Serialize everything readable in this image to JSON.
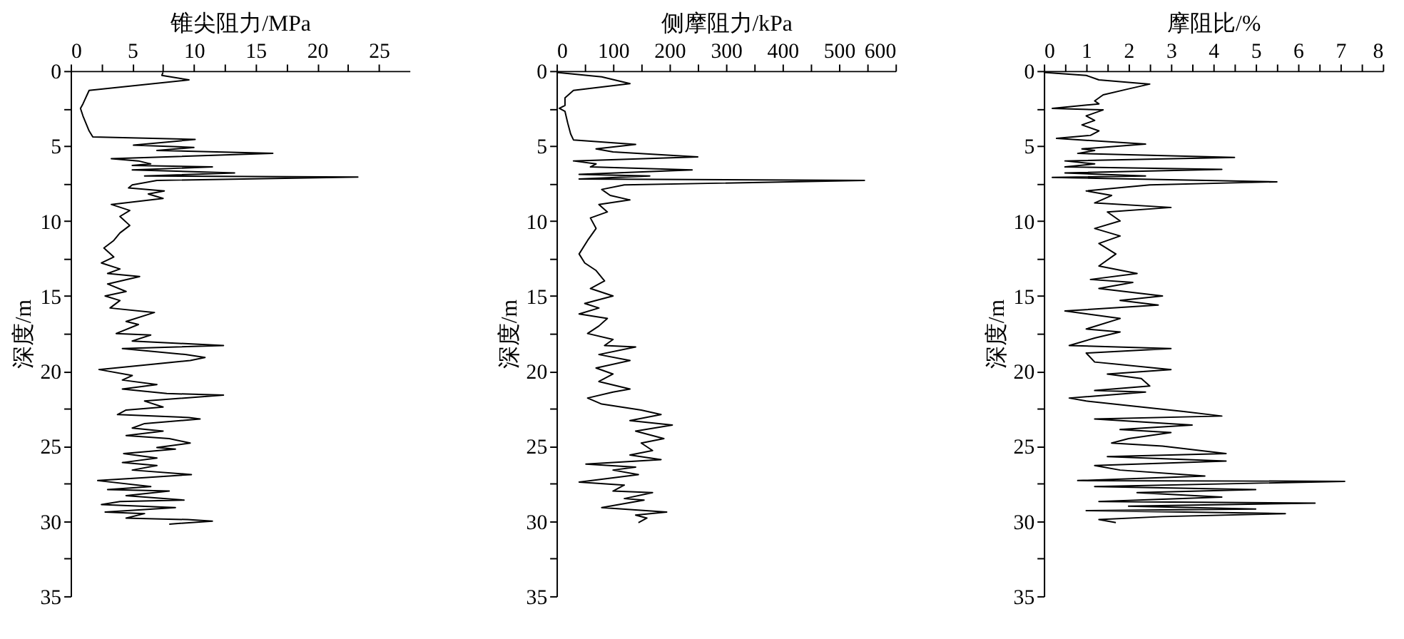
{
  "chart_data": [
    {
      "type": "line",
      "xlabel": "锥尖阻力/MPa",
      "ylabel": "深度/m",
      "xlim": [
        0,
        27.5
      ],
      "xticks": [
        0,
        {
          "value": 2.5,
          "label": null
        },
        5,
        {
          "value": 7.5,
          "label": null
        },
        10,
        {
          "value": 12.5,
          "label": null
        },
        15,
        {
          "value": 17.5,
          "label": null
        },
        20,
        {
          "value": 22.5,
          "label": null
        },
        25
      ],
      "ylim": [
        35,
        0
      ],
      "yticks": [
        0,
        {
          "value": 2.5,
          "label": null
        },
        5,
        {
          "value": 7.5,
          "label": null
        },
        10,
        {
          "value": 12.5,
          "label": null
        },
        15,
        {
          "value": 17.5,
          "label": null
        },
        20,
        {
          "value": 22.5,
          "label": null
        },
        25,
        {
          "value": 27.5,
          "label": null
        },
        30,
        {
          "value": 32.5,
          "label": null
        },
        35
      ],
      "series": [
        {
          "color": "#000000",
          "x": [
            7.5,
            7.4,
            9.6,
            1.5,
            1.0,
            0.8,
            1.0,
            1.5,
            1.8,
            10.1,
            5.1,
            10,
            7,
            16.4,
            3.3,
            5.5,
            6.5,
            5,
            11.5,
            5,
            13.3,
            6,
            23.3,
            7,
            5,
            4.7,
            7.6,
            6.3,
            7.5,
            3.3,
            4.8,
            4,
            4.8,
            4,
            3.5,
            2.7,
            3.5,
            2.5,
            4,
            3,
            5.6,
            3.0,
            4.5,
            2.8,
            4,
            3.2,
            6.8,
            4.5,
            5.5,
            3.7,
            6.5,
            5,
            12.4,
            4.2,
            9.3,
            10.9,
            9.7,
            2.3,
            5,
            4.2,
            7,
            4.2,
            7.8,
            12.4,
            6,
            7.5,
            4.5,
            3.8,
            9.6,
            10.5,
            6,
            5,
            7.5,
            4.5,
            8.0,
            9.7,
            7,
            8.5,
            4.3,
            7,
            4.2,
            7,
            5,
            9.8,
            6,
            2.2,
            6.5,
            3,
            8,
            4.5,
            9.2,
            4,
            2.5,
            8.5,
            2.8,
            6,
            4.5,
            9.5,
            11.5,
            8
          ],
          "values": [
            0.1,
            0.3,
            0.6,
            1.3,
            2.2,
            2.5,
            3.0,
            4.0,
            4.4,
            4.57,
            4.95,
            5.1,
            5.3,
            5.49,
            5.85,
            6.0,
            6.2,
            6.3,
            6.4,
            6.6,
            6.8,
            7.0,
            7.07,
            7.3,
            7.6,
            7.8,
            8.0,
            8.2,
            8.5,
            8.9,
            9.3,
            9.7,
            10.3,
            10.8,
            11.3,
            11.8,
            12.4,
            12.8,
            13.2,
            13.5,
            13.7,
            14.2,
            14.7,
            15.0,
            15.3,
            15.8,
            16.1,
            16.7,
            16.9,
            17.5,
            17.6,
            18.0,
            18.3,
            18.5,
            18.9,
            19.1,
            19.3,
            19.9,
            20.3,
            20.6,
            20.9,
            21.2,
            21.5,
            21.6,
            22.0,
            22.4,
            22.6,
            22.9,
            23.1,
            23.2,
            23.5,
            23.8,
            24.0,
            24.3,
            24.5,
            24.8,
            25.1,
            25.2,
            25.5,
            25.8,
            26.1,
            26.3,
            26.6,
            26.9,
            27.1,
            27.3,
            27.7,
            27.9,
            28.0,
            28.3,
            28.6,
            28.7,
            28.9,
            29.1,
            29.4,
            29.5,
            29.8,
            29.9,
            30.0,
            30.2
          ]
        }
      ]
    },
    {
      "type": "line",
      "xlabel": "侧摩阻力/kPa",
      "ylabel": "深度/m",
      "xlim": [
        0,
        600
      ],
      "xticks": [
        0,
        {
          "value": 50,
          "label": null
        },
        100,
        {
          "value": 150,
          "label": null
        },
        200,
        {
          "value": 250,
          "label": null
        },
        300,
        {
          "value": 350,
          "label": null
        },
        400,
        {
          "value": 450,
          "label": null
        },
        500,
        {
          "value": 550,
          "label": null
        },
        600
      ],
      "ylim": [
        35,
        0
      ],
      "yticks": [
        0,
        {
          "value": 2.5,
          "label": null
        },
        5,
        {
          "value": 7.5,
          "label": null
        },
        10,
        {
          "value": 12.5,
          "label": null
        },
        15,
        {
          "value": 17.5,
          "label": null
        },
        20,
        {
          "value": 22.5,
          "label": null
        },
        25,
        {
          "value": 27.5,
          "label": null
        },
        30,
        {
          "value": 32.5,
          "label": null
        },
        35
      ],
      "series": [
        {
          "color": "#000000",
          "x": [
            0,
            80,
            130,
            30,
            15,
            15,
            5,
            15,
            20,
            25,
            30,
            140,
            70,
            100,
            250,
            30,
            70,
            60,
            240,
            40,
            165,
            40,
            545,
            120,
            80,
            95,
            130,
            75,
            90,
            60,
            70,
            55,
            40,
            50,
            70,
            85,
            60,
            100,
            50,
            75,
            40,
            90,
            75,
            55,
            100,
            85,
            140,
            75,
            130,
            70,
            100,
            75,
            130,
            100,
            55,
            80,
            150,
            185,
            130,
            205,
            140,
            190,
            150,
            170,
            130,
            185,
            52,
            140,
            100,
            145,
            40,
            120,
            100,
            170,
            120,
            155,
            80,
            195,
            140,
            160,
            145
          ],
          "values": [
            0.1,
            0.4,
            0.85,
            1.3,
            1.8,
            2.3,
            2.5,
            2.7,
            3.5,
            4.2,
            4.6,
            4.9,
            5.2,
            5.4,
            5.73,
            6.0,
            6.2,
            6.4,
            6.6,
            6.9,
            7.0,
            7.2,
            7.3,
            7.6,
            7.9,
            8.3,
            8.6,
            8.9,
            9.4,
            9.8,
            10.5,
            11.3,
            12.2,
            12.8,
            13.3,
            14.0,
            14.5,
            15.0,
            15.5,
            15.8,
            16.2,
            16.5,
            17.0,
            17.5,
            17.9,
            18.3,
            18.4,
            18.9,
            19.3,
            19.8,
            20.2,
            20.7,
            21.2,
            21.4,
            21.8,
            22.2,
            22.6,
            22.9,
            23.3,
            23.6,
            24.0,
            24.5,
            24.8,
            25.3,
            25.6,
            25.9,
            26.2,
            26.4,
            26.6,
            26.9,
            27.4,
            27.6,
            28.0,
            28.1,
            28.5,
            28.6,
            29.1,
            29.4,
            29.6,
            29.8,
            30.1
          ]
        }
      ]
    },
    {
      "type": "line",
      "xlabel": "摩阻比/%",
      "ylabel": "深度/m",
      "xlim": [
        0,
        8
      ],
      "xticks": [
        0,
        {
          "value": 0.5,
          "label": null
        },
        1,
        {
          "value": 1.5,
          "label": null
        },
        2,
        {
          "value": 2.5,
          "label": null
        },
        3,
        {
          "value": 3.5,
          "label": null
        },
        4,
        {
          "value": 4.5,
          "label": null
        },
        5,
        {
          "value": 5.5,
          "label": null
        },
        6,
        {
          "value": 6.5,
          "label": null
        },
        7,
        {
          "value": 7.5,
          "label": null
        },
        8
      ],
      "ylim": [
        35,
        0
      ],
      "yticks": [
        0,
        {
          "value": 2.5,
          "label": null
        },
        5,
        {
          "value": 7.5,
          "label": null
        },
        10,
        {
          "value": 12.5,
          "label": null
        },
        15,
        {
          "value": 17.5,
          "label": null
        },
        20,
        {
          "value": 22.5,
          "label": null
        },
        25,
        {
          "value": 27.5,
          "label": null
        },
        30,
        {
          "value": 32.5,
          "label": null
        },
        35
      ],
      "series": [
        {
          "color": "#000000",
          "x": [
            0,
            1,
            1.3,
            2.5,
            2,
            1.4,
            1.2,
            1.3,
            0.2,
            1.4,
            1.0,
            1.2,
            0.9,
            1.3,
            1.1,
            0.3,
            2.4,
            0.9,
            1.2,
            0.8,
            4.5,
            0.5,
            1.2,
            0.5,
            4.2,
            0.5,
            2.4,
            0.2,
            5.5,
            2.5,
            1.0,
            1.6,
            1.2,
            3.0,
            1.5,
            1.8,
            1.2,
            1.8,
            1.3,
            1.7,
            1.3,
            2.2,
            1.1,
            2.1,
            1.3,
            2.8,
            1.8,
            2.7,
            0.5,
            1.8,
            1.0,
            1.8,
            1.2,
            0.6,
            3.0,
            1.0,
            1.2,
            3.0,
            1.5,
            2.3,
            2.5,
            1.2,
            2.4,
            0.6,
            1.0,
            2.0,
            3.3,
            4.2,
            1.2,
            3.5,
            1.8,
            3.0,
            2.0,
            1.6,
            2.8,
            4.3,
            1.5,
            4.3,
            1.2,
            1.8,
            3.8,
            0.8,
            7.1,
            1.2,
            5.0,
            2.2,
            4.2,
            1.3,
            6.4,
            2.0,
            5.0,
            1.0,
            5.7,
            2.8,
            1.3,
            1.7
          ],
          "values": [
            0.1,
            0.3,
            0.6,
            0.88,
            1.2,
            1.6,
            2.0,
            2.2,
            2.5,
            2.6,
            3.0,
            3.3,
            3.6,
            4.0,
            4.3,
            4.5,
            4.88,
            5.2,
            5.3,
            5.5,
            5.77,
            6.0,
            6.2,
            6.4,
            6.56,
            6.8,
            7.0,
            7.1,
            7.39,
            7.6,
            8.0,
            8.3,
            8.8,
            9.1,
            9.4,
            10.0,
            10.5,
            11.0,
            11.5,
            12.2,
            13.0,
            13.5,
            13.9,
            14.1,
            14.5,
            15.0,
            15.3,
            15.6,
            16.0,
            16.5,
            17.2,
            17.4,
            17.8,
            18.3,
            18.5,
            18.8,
            19.4,
            19.9,
            20.2,
            20.5,
            21.0,
            21.3,
            21.4,
            21.8,
            22.0,
            22.3,
            22.7,
            23.0,
            23.2,
            23.6,
            23.9,
            24.1,
            24.5,
            24.8,
            25.0,
            25.5,
            25.7,
            26.0,
            26.3,
            26.6,
            27.0,
            27.3,
            27.35,
            27.7,
            27.9,
            28.1,
            28.4,
            28.7,
            28.8,
            29.0,
            29.2,
            29.3,
            29.5,
            29.7,
            29.9,
            30.1
          ]
        }
      ]
    }
  ]
}
